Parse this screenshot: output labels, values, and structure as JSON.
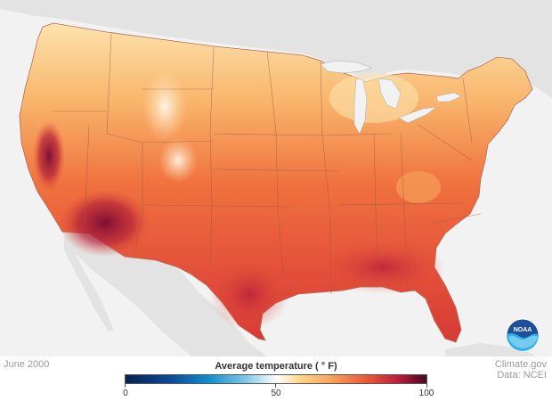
{
  "map": {
    "date_label": "June 2000",
    "credit_source": "Climate.gov",
    "credit_data": "Data: NCEI",
    "logo_text": "NOAA"
  },
  "legend": {
    "title": "Average temperature ( ° F)",
    "min_label": "0",
    "mid_label": "50",
    "max_label": "100",
    "scale_min": 0,
    "scale_max": 100,
    "colors": [
      "#08224f",
      "#1590d0",
      "#ffffff",
      "#f8a35c",
      "#ea5a3a",
      "#c2203c",
      "#4a0620"
    ]
  },
  "colors": {
    "land_background": "#e3e3e3",
    "ocean_background": "#f2f2f2",
    "state_border": "#8a5a4a",
    "hot_core": "#8c0f35",
    "warm": "#e8553a",
    "mild": "#f7a85a",
    "cool": "#fde0a8"
  }
}
